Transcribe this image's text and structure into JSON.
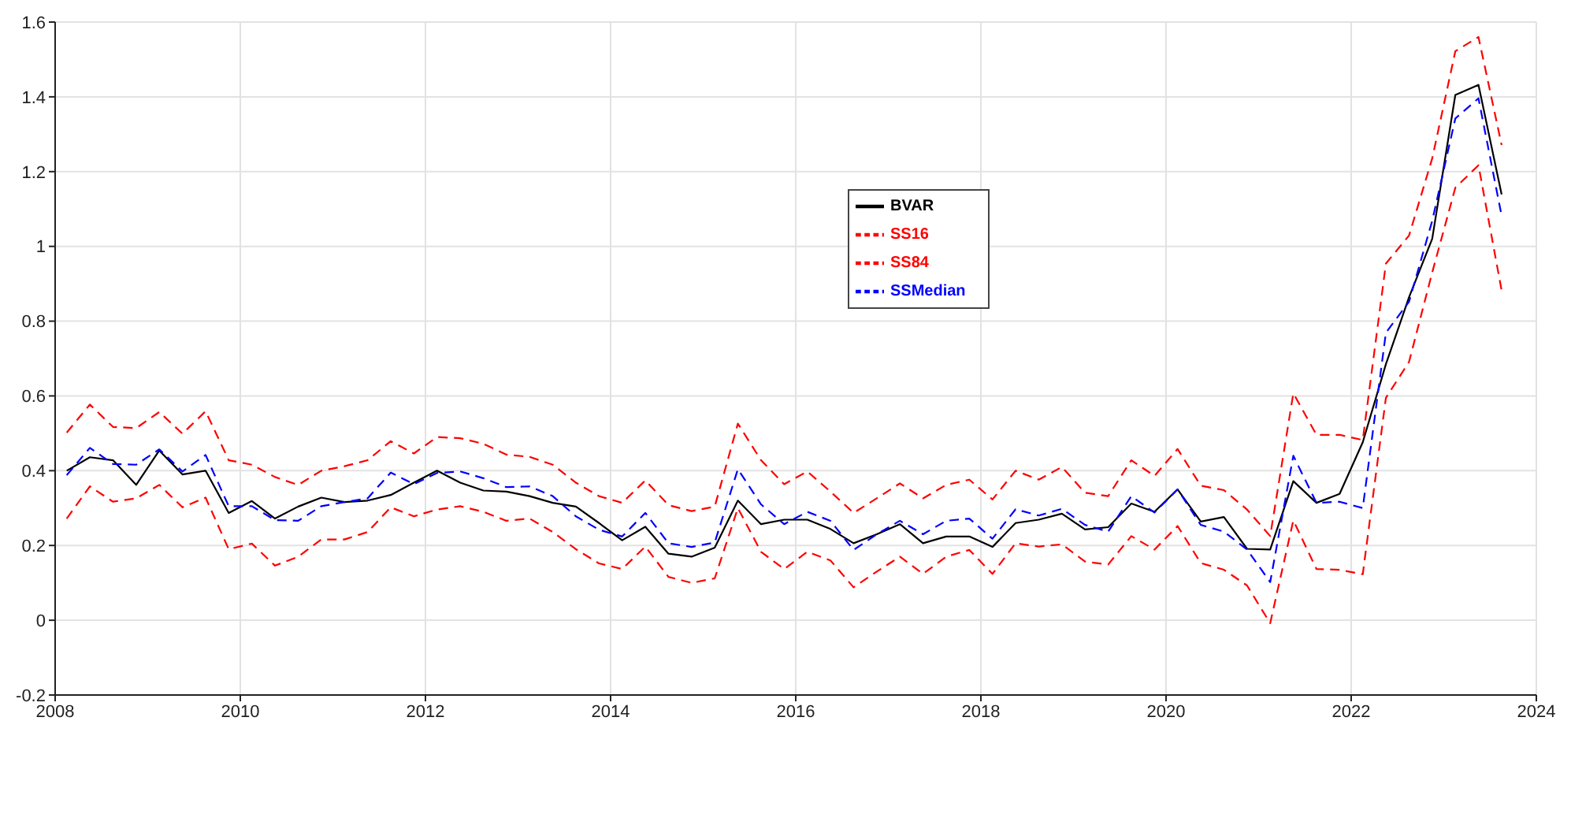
{
  "chart_data": {
    "type": "line",
    "xlim": [
      2008,
      2024
    ],
    "xticks": [
      2008,
      2010,
      2012,
      2014,
      2016,
      2018,
      2020,
      2022,
      2024
    ],
    "ylim": [
      -0.2,
      1.6
    ],
    "yticks": [
      -0.2,
      0,
      0.2,
      0.4,
      0.6,
      0.8,
      1,
      1.2,
      1.4,
      1.6
    ],
    "grid": true,
    "legend": "top",
    "marker": "none",
    "x": [
      2008.125,
      2008.375,
      2008.625,
      2008.875,
      2009.125,
      2009.375,
      2009.625,
      2009.875,
      2010.125,
      2010.375,
      2010.625,
      2010.875,
      2011.125,
      2011.375,
      2011.625,
      2011.875,
      2012.125,
      2012.375,
      2012.625,
      2012.875,
      2013.125,
      2013.375,
      2013.625,
      2013.875,
      2014.125,
      2014.375,
      2014.625,
      2014.875,
      2015.125,
      2015.375,
      2015.625,
      2015.875,
      2016.125,
      2016.375,
      2016.625,
      2016.875,
      2017.125,
      2017.375,
      2017.625,
      2017.875,
      2018.125,
      2018.375,
      2018.625,
      2018.875,
      2019.125,
      2019.375,
      2019.625,
      2019.875,
      2020.125,
      2020.375,
      2020.625,
      2020.875,
      2021.125,
      2021.375,
      2021.625,
      2021.875,
      2022.125,
      2022.375,
      2022.625,
      2022.875,
      2023.125,
      2023.375,
      2023.625
    ],
    "series": [
      {
        "name": "BVAR",
        "color": "#000000",
        "line_style": "solid",
        "values": [
          0.4,
          0.436,
          0.428,
          0.362,
          0.454,
          0.39,
          0.4,
          0.287,
          0.319,
          0.272,
          0.304,
          0.328,
          0.316,
          0.32,
          0.335,
          0.368,
          0.4,
          0.368,
          0.347,
          0.344,
          0.332,
          0.314,
          0.304,
          0.26,
          0.214,
          0.25,
          0.178,
          0.17,
          0.194,
          0.32,
          0.257,
          0.269,
          0.269,
          0.244,
          0.206,
          0.23,
          0.257,
          0.206,
          0.224,
          0.224,
          0.196,
          0.26,
          0.269,
          0.285,
          0.243,
          0.249,
          0.312,
          0.29,
          0.35,
          0.264,
          0.276,
          0.191,
          0.189,
          0.372,
          0.314,
          0.338,
          0.476,
          0.685,
          0.864,
          1.02,
          1.405,
          1.432,
          1.139
        ]
      },
      {
        "name": "SS16",
        "color": "#ff0000",
        "line_style": "dashed",
        "values": [
          0.272,
          0.358,
          0.317,
          0.326,
          0.362,
          0.302,
          0.328,
          0.19,
          0.205,
          0.146,
          0.17,
          0.216,
          0.216,
          0.236,
          0.302,
          0.278,
          0.296,
          0.305,
          0.29,
          0.266,
          0.272,
          0.236,
          0.19,
          0.152,
          0.137,
          0.197,
          0.116,
          0.1,
          0.112,
          0.3,
          0.183,
          0.137,
          0.183,
          0.16,
          0.088,
          0.13,
          0.17,
          0.124,
          0.17,
          0.188,
          0.124,
          0.206,
          0.197,
          0.203,
          0.157,
          0.149,
          0.225,
          0.189,
          0.252,
          0.153,
          0.135,
          0.093,
          -0.008,
          0.267,
          0.137,
          0.135,
          0.123,
          0.595,
          0.691,
          0.93,
          1.157,
          1.217,
          0.882
        ]
      },
      {
        "name": "SS84",
        "color": "#ff0000",
        "line_style": "dashed",
        "values": [
          0.502,
          0.577,
          0.517,
          0.514,
          0.557,
          0.499,
          0.559,
          0.428,
          0.416,
          0.383,
          0.362,
          0.4,
          0.412,
          0.428,
          0.479,
          0.446,
          0.49,
          0.487,
          0.472,
          0.443,
          0.437,
          0.416,
          0.368,
          0.332,
          0.314,
          0.374,
          0.308,
          0.292,
          0.304,
          0.526,
          0.428,
          0.364,
          0.398,
          0.344,
          0.287,
          0.326,
          0.366,
          0.326,
          0.362,
          0.376,
          0.323,
          0.4,
          0.376,
          0.41,
          0.341,
          0.332,
          0.428,
          0.386,
          0.458,
          0.36,
          0.348,
          0.296,
          0.225,
          0.607,
          0.496,
          0.496,
          0.482,
          0.954,
          1.029,
          1.235,
          1.522,
          1.56,
          1.271
        ]
      },
      {
        "name": "SSMedian",
        "color": "#0000ff",
        "line_style": "dashed",
        "values": [
          0.388,
          0.461,
          0.418,
          0.416,
          0.457,
          0.398,
          0.442,
          0.305,
          0.305,
          0.268,
          0.266,
          0.305,
          0.316,
          0.326,
          0.395,
          0.364,
          0.394,
          0.398,
          0.38,
          0.356,
          0.358,
          0.332,
          0.278,
          0.242,
          0.224,
          0.287,
          0.206,
          0.196,
          0.208,
          0.404,
          0.31,
          0.257,
          0.29,
          0.266,
          0.188,
          0.23,
          0.266,
          0.23,
          0.266,
          0.272,
          0.218,
          0.297,
          0.28,
          0.298,
          0.255,
          0.237,
          0.332,
          0.288,
          0.35,
          0.255,
          0.237,
          0.189,
          0.102,
          0.44,
          0.314,
          0.317,
          0.3,
          0.769,
          0.852,
          1.068,
          1.342,
          1.396,
          1.082
        ]
      }
    ]
  }
}
